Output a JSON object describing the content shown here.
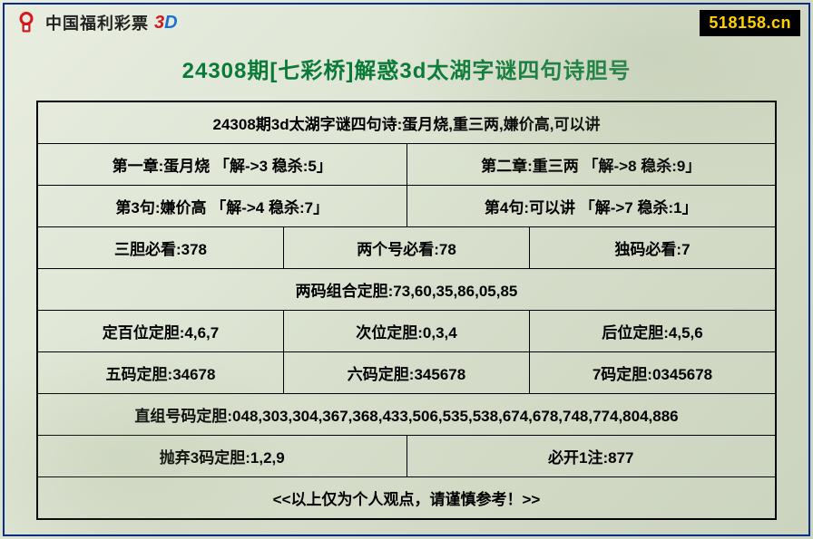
{
  "header": {
    "logo_text": "中国福利彩票",
    "logo_3d_3": "3",
    "logo_3d_d": "D",
    "site_badge": "518158.cn"
  },
  "title": "24308期[七彩桥]解惑3d太湖字谜四句诗胆号",
  "colors": {
    "frame_border": "#0a2d8a",
    "title_color": "#0a7a38",
    "badge_bg": "#000000",
    "badge_fg": "#ffd100",
    "logo_red": "#d01a1e",
    "logo_blue": "#1a6fd0",
    "cell_border": "#000000"
  },
  "rows": [
    {
      "cells": [
        "24308期3d太湖字谜四句诗:蛋月烧,重三两,嫌价高,可以讲"
      ]
    },
    {
      "cells": [
        "第一章:蛋月烧 「解->3 稳杀:5」",
        "第二章:重三两 「解->8 稳杀:9」"
      ]
    },
    {
      "cells": [
        "第3句:嫌价高 「解->4 稳杀:7」",
        "第4句:可以讲 「解->7 稳杀:1」"
      ]
    },
    {
      "cells": [
        "三胆必看:378",
        "两个号必看:78",
        "独码必看:7"
      ]
    },
    {
      "cells": [
        "两码组合定胆:73,60,35,86,05,85"
      ]
    },
    {
      "cells": [
        "定百位定胆:4,6,7",
        "次位定胆:0,3,4",
        "后位定胆:4,5,6"
      ]
    },
    {
      "cells": [
        "五码定胆:34678",
        "六码定胆:345678",
        "7码定胆:0345678"
      ]
    },
    {
      "cells": [
        "直组号码定胆:048,303,304,367,368,433,506,535,538,674,678,748,774,804,886"
      ]
    },
    {
      "cells": [
        "抛弃3码定胆:1,2,9",
        "必开1注:877"
      ]
    },
    {
      "cells": [
        "<<以上仅为个人观点，请谨慎参考！>>"
      ]
    }
  ]
}
